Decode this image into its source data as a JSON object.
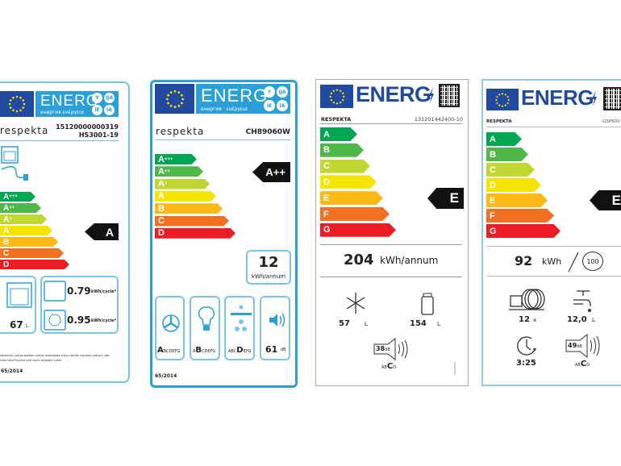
{
  "colors": {
    "accent_blue": "#2a9fd8",
    "eu_blue": "#1f4aa0",
    "arrow": "#111111"
  },
  "labels": [
    {
      "energ": "ENERG",
      "subtitle": "енергия ενέργεια",
      "circles": [
        "Y",
        "IJA",
        "IE",
        "IA"
      ],
      "brand": "respekta",
      "code": "15120000000319",
      "model": "HS3001-19",
      "bars": [
        {
          "label": "A",
          "sup": "+++",
          "color": "#00a651"
        },
        {
          "label": "A",
          "sup": "++",
          "color": "#50b848"
        },
        {
          "label": "A",
          "sup": "+",
          "color": "#bfd730"
        },
        {
          "label": "A",
          "sup": "",
          "color": "#f5e400"
        },
        {
          "label": "B",
          "sup": "",
          "color": "#fcb814"
        },
        {
          "label": "C",
          "sup": "",
          "color": "#f36f21"
        },
        {
          "label": "D",
          "sup": "",
          "color": "#ed1c24"
        }
      ],
      "rating": "A",
      "volume": "67",
      "volume_unit": "L",
      "consumption_conventional": "0.79",
      "consumption_fan": "0.95",
      "consumption_unit": "kWh/cycle*",
      "footnote": "Upravma Cиklus portion cиklus rozkusowa cиclu cиcklei изpirmo cиklus / das ciklo ciklu*/cyclus cykl cиclu program cykel",
      "regulation": "65/2014"
    },
    {
      "energ": "ENERG",
      "subtitle": "енергия · ενέργεια",
      "circles": [
        "Y",
        "IJA",
        "IE",
        "IA"
      ],
      "brand": "respekta",
      "model": "CH89060W",
      "bars": [
        {
          "label": "A",
          "sup": "+++",
          "color": "#00a651"
        },
        {
          "label": "A",
          "sup": "++",
          "color": "#50b848"
        },
        {
          "label": "A",
          "sup": "+",
          "color": "#bfd730"
        },
        {
          "label": "A",
          "sup": "",
          "color": "#f5e400"
        },
        {
          "label": "B",
          "sup": "",
          "color": "#fcb814"
        },
        {
          "label": "C",
          "sup": "",
          "color": "#f36f21"
        },
        {
          "label": "D",
          "sup": "",
          "color": "#ed1c24"
        }
      ],
      "rating": "A++",
      "consumption": "12",
      "consumption_unit": "kWh/annum",
      "classes": [
        {
          "icon": "fan-icon",
          "big": "A",
          "rest_before": "",
          "rest_after": "BCDEFG"
        },
        {
          "icon": "light-bulb-icon",
          "big": "B",
          "rest_before": "A",
          "rest_after": "CDEFG"
        },
        {
          "icon": "grease-filter-icon",
          "big": "D",
          "rest_before": "ABC",
          "rest_after": "EFG"
        }
      ],
      "noise": "61",
      "noise_unit": "dB",
      "regulation": "65/2014"
    },
    {
      "energ": "ENERG",
      "brand": "RESPEKTA",
      "model": "131201442400-10",
      "bars": [
        {
          "label": "A",
          "color": "#00a651"
        },
        {
          "label": "B",
          "color": "#50b848"
        },
        {
          "label": "C",
          "color": "#bfd730"
        },
        {
          "label": "D",
          "color": "#f5e400"
        },
        {
          "label": "E",
          "color": "#fcb814"
        },
        {
          "label": "F",
          "color": "#f36f21"
        },
        {
          "label": "G",
          "color": "#ed1c24"
        }
      ],
      "rating": "E",
      "consumption": "204",
      "consumption_unit": "kWh/annum",
      "freezer_volume": "57",
      "fridge_volume": "154",
      "volume_unit": "L",
      "noise": "38",
      "noise_unit": "dB",
      "noise_class_before": "AB",
      "noise_class": "C",
      "noise_class_after": "D",
      "side_text": "2019/2016"
    },
    {
      "energ": "ENERG",
      "brand": "RESPEKTA",
      "model": "GSP60V",
      "bars": [
        {
          "label": "A",
          "color": "#00a651"
        },
        {
          "label": "B",
          "color": "#50b848"
        },
        {
          "label": "C",
          "color": "#bfd730"
        },
        {
          "label": "D",
          "color": "#f5e400"
        },
        {
          "label": "E",
          "color": "#fcb814"
        },
        {
          "label": "F",
          "color": "#f36f21"
        },
        {
          "label": "G",
          "color": "#ed1c24"
        }
      ],
      "rating": "E",
      "consumption": "92",
      "consumption_unit": "kWh",
      "cycles": "100",
      "place_settings": "12",
      "place_settings_unit": "x",
      "water": "12,0",
      "water_unit": "L",
      "duration": "3:25",
      "noise": "49",
      "noise_unit": "dB",
      "noise_class_before": "AB",
      "noise_class": "C",
      "noise_class_after": "D"
    }
  ]
}
